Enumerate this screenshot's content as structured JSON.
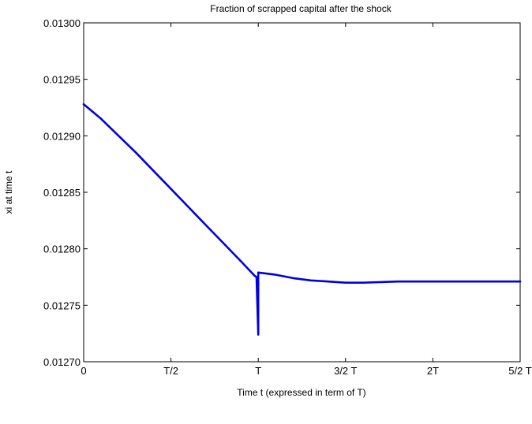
{
  "chart_data": {
    "type": "line",
    "title": "Fraction of scrapped capital after the shock",
    "xlabel": "Time t (expressed in term of T)",
    "ylabel": "xi at time t",
    "x_unit": "T",
    "xlim": [
      0,
      2.5
    ],
    "ylim": [
      0.0127,
      0.013
    ],
    "x_ticks": [
      0,
      0.5,
      1,
      1.5,
      2,
      2.5
    ],
    "x_tick_labels": [
      "0",
      "T/2",
      "T",
      "3/2 T",
      "2T",
      "5/2 T"
    ],
    "y_ticks": [
      0.0127,
      0.01275,
      0.0128,
      0.01285,
      0.0129,
      0.01295,
      0.013
    ],
    "y_tick_labels": [
      "0.01270",
      "0.01275",
      "0.01280",
      "0.01285",
      "0.01290",
      "0.01295",
      "0.01300"
    ],
    "grid": false,
    "line_color": "#0000e0",
    "series": [
      {
        "x": [
          0,
          0.1,
          0.2,
          0.3,
          0.4,
          0.5,
          0.6,
          0.7,
          0.8,
          0.9,
          0.98,
          0.99,
          1.0,
          1.0,
          1.05,
          1.1,
          1.2,
          1.3,
          1.4,
          1.5,
          1.6,
          1.8,
          2.0,
          2.2,
          2.4,
          2.5
        ],
        "y": [
          0.012928,
          0.012915,
          0.0129,
          0.012885,
          0.012869,
          0.012853,
          0.012837,
          0.012821,
          0.012805,
          0.012789,
          0.012776,
          0.012775,
          0.012724,
          0.012779,
          0.012778,
          0.012777,
          0.012774,
          0.012772,
          0.012771,
          0.01277,
          0.01277,
          0.012771,
          0.012771,
          0.012771,
          0.012771,
          0.012771
        ]
      }
    ]
  }
}
